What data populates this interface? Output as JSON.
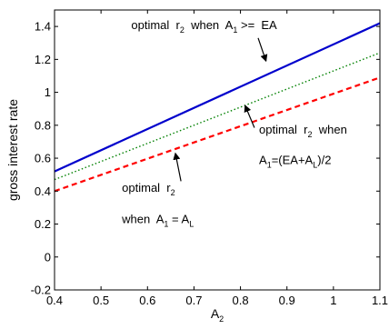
{
  "chart_data": {
    "type": "line",
    "xlabel": "A",
    "xlabel_sub": "2",
    "ylabel": "gross interest rate",
    "xlim": [
      0.4,
      1.1
    ],
    "ylim": [
      -0.2,
      1.5
    ],
    "xticks": [
      "0.4",
      "0.5",
      "0.6",
      "0.7",
      "0.8",
      "0.9",
      "1",
      "1.1"
    ],
    "yticks": [
      "-0.2",
      "0",
      "0.2",
      "0.4",
      "0.6",
      "0.8",
      "1",
      "1.2",
      "1.4"
    ],
    "grid": false,
    "series": [
      {
        "color": "#0000cc",
        "style": "solid",
        "x": [
          0.4,
          1.1
        ],
        "y": [
          0.52,
          1.42
        ]
      },
      {
        "color": "#008000",
        "style": "dotted",
        "x": [
          0.4,
          1.1
        ],
        "y": [
          0.47,
          1.24
        ]
      },
      {
        "color": "#ff0000",
        "style": "dashed",
        "x": [
          0.4,
          1.1
        ],
        "y": [
          0.4,
          1.09
        ]
      }
    ],
    "annotations": [
      {
        "pos": [
          0.565,
          1.385
        ],
        "arrow_from": [
          0.838,
          1.33
        ],
        "arrow_to": [
          0.855,
          1.19
        ],
        "parts": [
          [
            "optimal  r",
            ""
          ],
          [
            "2",
            "sub"
          ],
          [
            "  when  A",
            ""
          ],
          [
            "1",
            "sub"
          ],
          [
            " >=  EA",
            ""
          ]
        ]
      },
      {
        "pos": [
          0.84,
          0.75
        ],
        "arrow_from": [
          0.83,
          0.785
        ],
        "arrow_to": [
          0.81,
          0.92
        ],
        "parts": [
          [
            "optimal  r",
            ""
          ],
          [
            "2",
            "sub"
          ],
          [
            "  when",
            ""
          ]
        ]
      },
      {
        "pos": [
          0.84,
          0.565
        ],
        "parts": [
          [
            "A",
            ""
          ],
          [
            "1",
            "sub"
          ],
          [
            "=(EA+A",
            ""
          ],
          [
            "L",
            "sub"
          ],
          [
            ")/2",
            ""
          ]
        ]
      },
      {
        "pos": [
          0.545,
          0.395
        ],
        "arrow_from": [
          0.672,
          0.46
        ],
        "arrow_to": [
          0.66,
          0.63
        ],
        "parts": [
          [
            "optimal  r",
            ""
          ],
          [
            "2",
            "sub"
          ]
        ]
      },
      {
        "pos": [
          0.545,
          0.205
        ],
        "parts": [
          [
            "when  A",
            ""
          ],
          [
            "1",
            "sub"
          ],
          [
            " = A",
            ""
          ],
          [
            "L",
            "sub"
          ]
        ]
      }
    ]
  }
}
